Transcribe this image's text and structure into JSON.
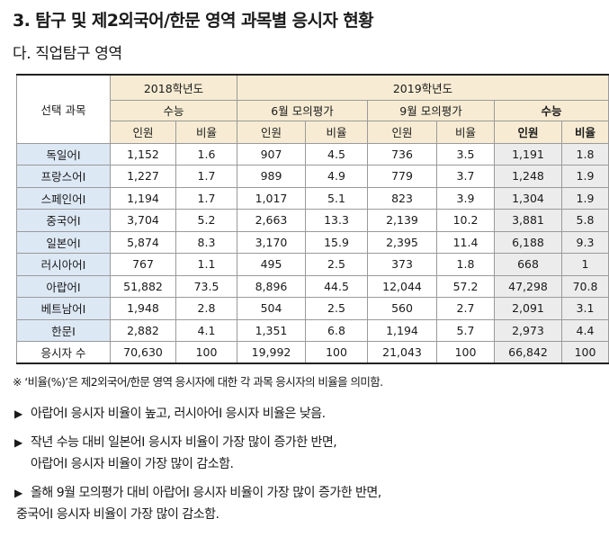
{
  "title": "3. 탐구 및 제2외국어/한문 영역 과목별 응시자 현황",
  "subtitle": "다. 직업탐구 영역",
  "table": {
    "corner_label": "선택 과목",
    "year2018": "2018학년도",
    "year2019": "2019학년도",
    "exam_suneung": "수능",
    "exam_june": "6월 모의평가",
    "exam_sept": "9월 모의평가",
    "col_people": "인원",
    "col_ratio": "비율",
    "rows": [
      {
        "subject": "독일어Ⅰ",
        "v": [
          "1,152",
          "1.6",
          "907",
          "4.5",
          "736",
          "3.5",
          "1,191",
          "1.8"
        ]
      },
      {
        "subject": "프랑스어Ⅰ",
        "v": [
          "1,227",
          "1.7",
          "989",
          "4.9",
          "779",
          "3.7",
          "1,248",
          "1.9"
        ]
      },
      {
        "subject": "스페인어Ⅰ",
        "v": [
          "1,194",
          "1.7",
          "1,017",
          "5.1",
          "823",
          "3.9",
          "1,304",
          "1.9"
        ]
      },
      {
        "subject": "중국어Ⅰ",
        "v": [
          "3,704",
          "5.2",
          "2,663",
          "13.3",
          "2,139",
          "10.2",
          "3,881",
          "5.8"
        ]
      },
      {
        "subject": "일본어Ⅰ",
        "v": [
          "5,874",
          "8.3",
          "3,170",
          "15.9",
          "2,395",
          "11.4",
          "6,188",
          "9.3"
        ]
      },
      {
        "subject": "러시아어Ⅰ",
        "v": [
          "767",
          "1.1",
          "495",
          "2.5",
          "373",
          "1.8",
          "668",
          "1"
        ]
      },
      {
        "subject": "아랍어Ⅰ",
        "v": [
          "51,882",
          "73.5",
          "8,896",
          "44.5",
          "12,044",
          "57.2",
          "47,298",
          "70.8"
        ]
      },
      {
        "subject": "베트남어Ⅰ",
        "v": [
          "1,948",
          "2.8",
          "504",
          "2.5",
          "560",
          "2.7",
          "2,091",
          "3.1"
        ]
      },
      {
        "subject": "한문Ⅰ",
        "v": [
          "2,882",
          "4.1",
          "1,351",
          "6.8",
          "1,194",
          "5.7",
          "2,973",
          "4.4"
        ]
      }
    ],
    "total": {
      "subject": "응시자 수",
      "v": [
        "70,630",
        "100",
        "19,992",
        "100",
        "21,043",
        "100",
        "66,842",
        "100"
      ]
    }
  },
  "note": "※ ‘비율(%)’은 제2외국어/한문 영역 응시자에 대한 각 과목 응시자의 비율을 의미함.",
  "bullets": {
    "b1_line1": "아랍어Ⅰ 응시자 비율이 높고, 러시아어Ⅰ 응시자 비율은 낮음.",
    "b2_line1": "작년 수능 대비 일본어Ⅰ 응시자 비율이 가장 많이 증가한 반면,",
    "b2_line2": "아랍어Ⅰ 응시자 비율이 가장 많이 감소함.",
    "b3_line1": "올해 9월 모의평가 대비 아랍어Ⅰ 응시자 비율이 가장 많이 증가한 반면,",
    "b3_line2": "중국어Ⅰ 응시자 비율이 가장 많이 감소함.",
    "arrow": "▶"
  }
}
